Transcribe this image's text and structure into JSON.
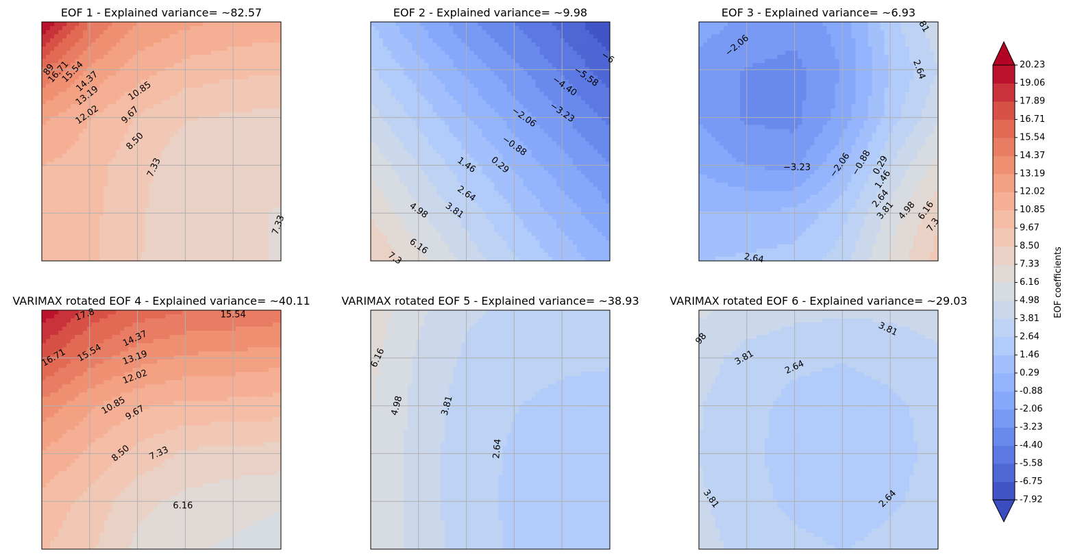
{
  "chart_data": {
    "type": "contour",
    "levels": [
      -7.92,
      -6.75,
      -5.58,
      -4.4,
      -3.23,
      -2.06,
      -0.88,
      0.29,
      1.46,
      2.64,
      3.81,
      4.98,
      6.16,
      7.33,
      8.5,
      9.67,
      10.85,
      12.02,
      13.19,
      14.37,
      15.54,
      16.71,
      17.89,
      19.06,
      20.23
    ],
    "colorbar": {
      "ticks": [
        "20.23",
        "19.06",
        "17.89",
        "16.71",
        "15.54",
        "14.37",
        "13.19",
        "12.02",
        "10.85",
        "9.67",
        "8.50",
        "7.33",
        "6.16",
        "4.98",
        "3.81",
        "2.64",
        "1.46",
        "0.29",
        "-0.88",
        "-2.06",
        "-3.23",
        "-4.40",
        "-5.58",
        "-6.75",
        "-7.92"
      ],
      "label": "EOF coefficients",
      "extend": "both",
      "cmap": "coolwarm"
    },
    "grid": true,
    "panels": [
      {
        "title": "EOF 1 - Explained variance= ~82.57",
        "z": [
          [
            20.5,
            15.6,
            13.2,
            12.3,
            11.8,
            11.5
          ],
          [
            15.6,
            13.0,
            11.4,
            10.4,
            10.0,
            9.8
          ],
          [
            12.3,
            10.9,
            9.6,
            8.6,
            8.3,
            8.2
          ],
          [
            10.9,
            10.2,
            8.9,
            7.7,
            7.5,
            7.5
          ],
          [
            10.5,
            10.0,
            8.7,
            7.6,
            7.4,
            7.3
          ],
          [
            10.4,
            9.9,
            8.6,
            7.6,
            7.4,
            7.3
          ]
        ],
        "labels": [
          {
            "text": "89",
            "angle": -55
          },
          {
            "text": "16.71",
            "angle": -48
          },
          {
            "text": "15.54",
            "angle": -45
          },
          {
            "text": "14.37",
            "angle": -42
          },
          {
            "text": "13.19",
            "angle": -38
          },
          {
            "text": "12.02",
            "angle": -35
          },
          {
            "text": "10.85",
            "angle": -35
          },
          {
            "text": "9.67",
            "angle": -45
          },
          {
            "text": "8.50",
            "angle": -45
          },
          {
            "text": "7.33",
            "angle": -65
          },
          {
            "text": "7.33",
            "angle": -70
          }
        ]
      },
      {
        "title": "EOF 2 - Explained variance= ~9.98",
        "z": [
          [
            1.5,
            -0.9,
            -2.9,
            -4.5,
            -6.0,
            -7.8
          ],
          [
            2.8,
            0.8,
            -1.2,
            -2.9,
            -4.6,
            -6.2
          ],
          [
            4.3,
            2.3,
            0.4,
            -1.4,
            -3.1,
            -4.7
          ],
          [
            5.8,
            3.8,
            1.9,
            0.1,
            -1.6,
            -3.2
          ],
          [
            7.2,
            5.2,
            3.3,
            1.5,
            -0.2,
            -1.8
          ],
          [
            8.6,
            6.6,
            4.6,
            2.8,
            1.1,
            -0.4
          ]
        ],
        "labels": [
          {
            "text": "−6",
            "angle": 35
          },
          {
            "text": "−5.58",
            "angle": 35
          },
          {
            "text": "−4.40",
            "angle": 35
          },
          {
            "text": "−3.23",
            "angle": 35
          },
          {
            "text": "−2.06",
            "angle": 35
          },
          {
            "text": "−0.88",
            "angle": 35
          },
          {
            "text": "0.29",
            "angle": 40
          },
          {
            "text": "1.46",
            "angle": 35
          },
          {
            "text": "2.64",
            "angle": 35
          },
          {
            "text": "3.81",
            "angle": 35
          },
          {
            "text": "4.98",
            "angle": 35
          },
          {
            "text": "6.16",
            "angle": 35
          },
          {
            "text": "7.3",
            "angle": 35
          }
        ]
      },
      {
        "title": "EOF 3 - Explained variance= ~6.93",
        "z": [
          [
            -1.5,
            -2.3,
            -2.7,
            -1.6,
            2.2,
            4.6
          ],
          [
            -2.6,
            -3.3,
            -3.6,
            -2.0,
            1.5,
            3.8
          ],
          [
            -2.2,
            -3.4,
            -3.6,
            -1.6,
            2.1,
            4.8
          ],
          [
            -1.1,
            -2.1,
            -2.4,
            0.2,
            3.8,
            6.6
          ],
          [
            0.4,
            0.3,
            0.6,
            2.2,
            5.4,
            8.2
          ],
          [
            1.4,
            1.7,
            2.0,
            3.2,
            6.4,
            9.0
          ]
        ],
        "labels": [
          {
            "text": "−2.06",
            "angle": -40
          },
          {
            "text": "81",
            "angle": 60
          },
          {
            "text": "2.64",
            "angle": 70
          },
          {
            "text": "−3.23",
            "angle": 0
          },
          {
            "text": "−2.06",
            "angle": -55
          },
          {
            "text": "−0.88",
            "angle": -60
          },
          {
            "text": "0.29",
            "angle": -60
          },
          {
            "text": "1.46",
            "angle": -55
          },
          {
            "text": "2.64",
            "angle": -50
          },
          {
            "text": "3.81",
            "angle": -50
          },
          {
            "text": "4.98",
            "angle": -50
          },
          {
            "text": "6.16",
            "angle": -55
          },
          {
            "text": "7.3",
            "angle": -55
          },
          {
            "text": "2.64",
            "angle": 10
          }
        ]
      },
      {
        "title": "VARIMAX rotated EOF 4 - Explained variance= ~40.11",
        "z": [
          [
            20.0,
            17.5,
            16.2,
            15.6,
            15.4,
            15.1
          ],
          [
            17.0,
            15.0,
            13.7,
            13.0,
            12.8,
            12.5
          ],
          [
            14.0,
            12.2,
            11.0,
            10.6,
            10.5,
            10.3
          ],
          [
            11.9,
            10.6,
            9.3,
            8.3,
            8.1,
            8.0
          ],
          [
            10.5,
            9.3,
            7.7,
            7.0,
            6.6,
            6.3
          ],
          [
            9.8,
            8.7,
            7.0,
            6.3,
            6.0,
            5.5
          ]
        ],
        "labels": [
          {
            "text": "17.8",
            "angle": -20
          },
          {
            "text": "15.54",
            "angle": 0
          },
          {
            "text": "16.71",
            "angle": -30
          },
          {
            "text": "15.54",
            "angle": -30
          },
          {
            "text": "14.37",
            "angle": -25
          },
          {
            "text": "13.19",
            "angle": -20
          },
          {
            "text": "12.02",
            "angle": -20
          },
          {
            "text": "10.85",
            "angle": -30
          },
          {
            "text": "9.67",
            "angle": -30
          },
          {
            "text": "8.50",
            "angle": -40
          },
          {
            "text": "7.33",
            "angle": -25
          },
          {
            "text": "6.16",
            "angle": 0
          }
        ]
      },
      {
        "title": "VARIMAX rotated EOF 5 - Explained variance= ~38.93",
        "z": [
          [
            6.9,
            5.2,
            4.0,
            3.6,
            3.4,
            3.3
          ],
          [
            6.5,
            4.8,
            3.6,
            3.1,
            2.9,
            2.8
          ],
          [
            6.2,
            4.6,
            3.2,
            2.7,
            2.3,
            2.1
          ],
          [
            6.1,
            4.5,
            3.1,
            2.5,
            2.2,
            2.0
          ],
          [
            6.1,
            4.5,
            3.1,
            2.4,
            2.1,
            2.0
          ],
          [
            6.1,
            4.5,
            3.2,
            2.5,
            2.1,
            2.0
          ]
        ],
        "labels": [
          {
            "text": "6.16",
            "angle": -65
          },
          {
            "text": "4.98",
            "angle": -75
          },
          {
            "text": "3.81",
            "angle": -75
          },
          {
            "text": "2.64",
            "angle": -85
          }
        ]
      },
      {
        "title": "VARIMAX rotated EOF 6 - Explained variance= ~29.03",
        "z": [
          [
            5.2,
            4.5,
            4.2,
            4.0,
            4.1,
            4.3
          ],
          [
            4.3,
            3.4,
            2.9,
            2.7,
            3.0,
            3.6
          ],
          [
            3.9,
            3.0,
            2.3,
            2.1,
            2.4,
            3.0
          ],
          [
            3.8,
            2.9,
            2.2,
            2.0,
            2.3,
            2.9
          ],
          [
            4.0,
            3.0,
            2.4,
            2.2,
            2.5,
            3.0
          ],
          [
            4.3,
            3.4,
            2.9,
            2.6,
            2.9,
            3.4
          ]
        ],
        "labels": [
          {
            "text": "98",
            "angle": -50
          },
          {
            "text": "3.81",
            "angle": -30
          },
          {
            "text": "2.64",
            "angle": -25
          },
          {
            "text": "3.81",
            "angle": 25
          },
          {
            "text": "3.81",
            "angle": 55
          },
          {
            "text": "2.64",
            "angle": -45
          }
        ]
      }
    ]
  }
}
